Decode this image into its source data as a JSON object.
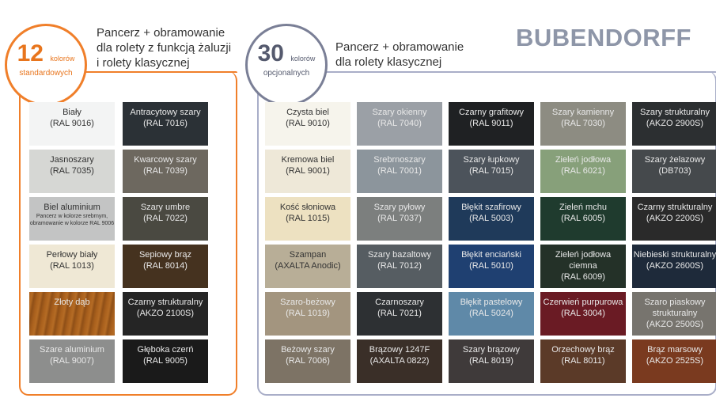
{
  "brand": "BUBENDORFF",
  "standard": {
    "count": "12",
    "count_word": "kolorów",
    "count_sub": "standardowych",
    "heading": [
      "Pancerz + obramowanie",
      "dla rolety z funkcją żaluzji",
      "i rolety klasycznej"
    ],
    "accent": "#f07f2a",
    "swatches": [
      {
        "name": "Biały",
        "code": "(RAL 9016)",
        "color": "#f3f4f4",
        "text": "light"
      },
      {
        "name": "Antracytowy szary",
        "code": "(RAL 7016)",
        "color": "#2b3136",
        "text": "dark"
      },
      {
        "name": "Jasnoszary",
        "code": "(RAL 7035)",
        "color": "#d6d7d4",
        "text": "light"
      },
      {
        "name": "Kwarcowy szary",
        "code": "(RAL 7039)",
        "color": "#6d685f",
        "text": "dark"
      },
      {
        "name": "Biel aluminium",
        "code": "",
        "note": "Pancerz w kolorze srebrnym, obramowanie w kolorze RAL 9006",
        "color": "#c3c4c4",
        "text": "light"
      },
      {
        "name": "Szary umbre",
        "code": "(RAL 7022)",
        "color": "#4a4941",
        "text": "dark"
      },
      {
        "name": "Perłowy biały",
        "code": "(RAL 1013)",
        "color": "#efe8d5",
        "text": "light"
      },
      {
        "name": "Sepiowy brąz",
        "code": "(RAL 8014)",
        "color": "#45321f",
        "text": "dark"
      },
      {
        "name": "Złoty dąb",
        "code": "",
        "color": "#a9601d",
        "text": "dark"
      },
      {
        "name": "Czarny strukturalny",
        "code": "(AKZO 2100S)",
        "color": "#252525",
        "text": "dark"
      },
      {
        "name": "Szare aluminium",
        "code": "(RAL 9007)",
        "color": "#8d8e8d",
        "text": "dark"
      },
      {
        "name": "Głęboka czerń",
        "code": "(RAL 9005)",
        "color": "#1a1a1a",
        "text": "dark"
      }
    ]
  },
  "optional": {
    "count": "30",
    "count_word": "kolorów",
    "count_sub": "opcjonalnych",
    "heading": [
      "Pancerz + obramowanie",
      "dla rolety klasycznej"
    ],
    "accent": "#a9aec8",
    "swatches": [
      {
        "name": "Czysta biel",
        "code": "(RAL 9010)",
        "color": "#f6f4ec",
        "text": "light"
      },
      {
        "name": "Szary okienny",
        "code": "(RAL 7040)",
        "color": "#9ba0a6",
        "text": "dark"
      },
      {
        "name": "Czarny grafitowy",
        "code": "(RAL 9011)",
        "color": "#1f2123",
        "text": "dark"
      },
      {
        "name": "Szary kamienny",
        "code": "(RAL 7030)",
        "color": "#8d8c82",
        "text": "dark"
      },
      {
        "name": "Szary strukturalny",
        "code": "(AKZO 2900S)",
        "color": "#2c2f31",
        "text": "dark"
      },
      {
        "name": "Kremowa biel",
        "code": "(RAL 9001)",
        "color": "#eee8d8",
        "text": "light"
      },
      {
        "name": "Srebrnoszary",
        "code": "(RAL 7001)",
        "color": "#8c959c",
        "text": "dark"
      },
      {
        "name": "Szary łupkowy",
        "code": "(RAL 7015)",
        "color": "#4c535b",
        "text": "dark"
      },
      {
        "name": "Zieleń jodłowa",
        "code": "(RAL 6021)",
        "color": "#87a07a",
        "text": "dark"
      },
      {
        "name": "Szary żelazowy",
        "code": "(DB703)",
        "color": "#45494c",
        "text": "dark"
      },
      {
        "name": "Kość słoniowa",
        "code": "(RAL 1015)",
        "color": "#ede1c1",
        "text": "light"
      },
      {
        "name": "Szary pyłowy",
        "code": "(RAL 7037)",
        "color": "#7c7f7e",
        "text": "dark"
      },
      {
        "name": "Błękit szafirowy",
        "code": "(RAL 5003)",
        "color": "#1f3a5a",
        "text": "dark"
      },
      {
        "name": "Zieleń mchu",
        "code": "(RAL 6005)",
        "color": "#1f3b2e",
        "text": "dark"
      },
      {
        "name": "Czarny strukturalny",
        "code": "(AKZO 2200S)",
        "color": "#2a2a2a",
        "text": "dark"
      },
      {
        "name": "Szampan",
        "code": "(AXALTA Anodic)",
        "color": "#b8ae97",
        "text": "light"
      },
      {
        "name": "Szary bazaltowy",
        "code": "(RAL 7012)",
        "color": "#565d62",
        "text": "dark"
      },
      {
        "name": "Błękit enciański",
        "code": "(RAL 5010)",
        "color": "#1f4071",
        "text": "dark"
      },
      {
        "name": "Zieleń jodłowa ciemna",
        "code": "(RAL 6009)",
        "color": "#243128",
        "text": "dark"
      },
      {
        "name": "Niebieski strukturalny",
        "code": "(AKZO 2600S)",
        "color": "#1e2a3a",
        "text": "dark"
      },
      {
        "name": "Szaro-beżowy",
        "code": "(RAL 1019)",
        "color": "#a3957f",
        "text": "dark"
      },
      {
        "name": "Czarnoszary",
        "code": "(RAL 7021)",
        "color": "#2d3033",
        "text": "dark"
      },
      {
        "name": "Błękit pastelowy",
        "code": "(RAL 5024)",
        "color": "#5f89a8",
        "text": "dark"
      },
      {
        "name": "Czerwień purpurowa",
        "code": "(RAL 3004)",
        "color": "#6a1b24",
        "text": "dark"
      },
      {
        "name": "Szaro piaskowy strukturalny",
        "code": "(AKZO 2500S)",
        "color": "#77746e",
        "text": "dark"
      },
      {
        "name": "Beżowy szary",
        "code": "(RAL 7006)",
        "color": "#7d7365",
        "text": "dark"
      },
      {
        "name": "Brązowy 1247F",
        "code": "(AXALTA 0822)",
        "color": "#3a2f28",
        "text": "dark"
      },
      {
        "name": "Szary brązowy",
        "code": "(RAL 8019)",
        "color": "#3f3a3a",
        "text": "dark"
      },
      {
        "name": "Orzechowy brąz",
        "code": "(RAL 8011)",
        "color": "#5b3a28",
        "text": "dark"
      },
      {
        "name": "Brąz marsowy",
        "code": "(AKZO 2525S)",
        "color": "#7a3a1f",
        "text": "dark"
      }
    ]
  }
}
